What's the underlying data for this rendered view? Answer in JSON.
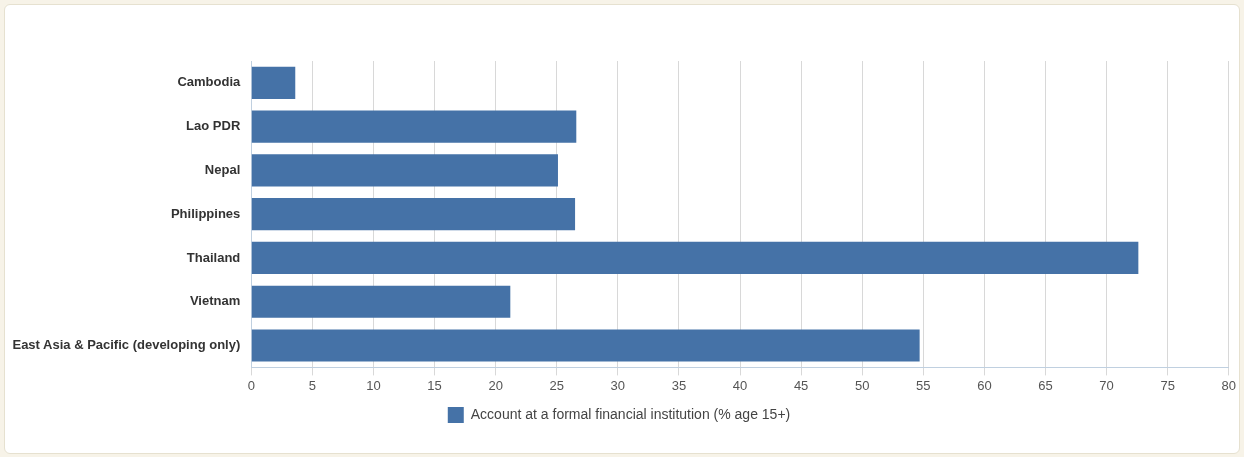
{
  "chart_data": {
    "type": "bar",
    "orientation": "horizontal",
    "categories": [
      "Cambodia",
      "Lao PDR",
      "Nepal",
      "Philippines",
      "Thailand",
      "Vietnam",
      "East Asia & Pacific (developing only)"
    ],
    "series": [
      {
        "name": "Account at a formal financial institution (% age 15+)",
        "color": "#4572a7",
        "values": [
          3.6,
          26.6,
          25.1,
          26.5,
          72.6,
          21.2,
          54.7
        ]
      }
    ],
    "xlim": [
      0,
      80
    ],
    "xticks": [
      0,
      5,
      10,
      15,
      20,
      25,
      30,
      35,
      40,
      45,
      50,
      55,
      60,
      65,
      70,
      75,
      80
    ],
    "grid": "x",
    "legend": "bottom"
  }
}
